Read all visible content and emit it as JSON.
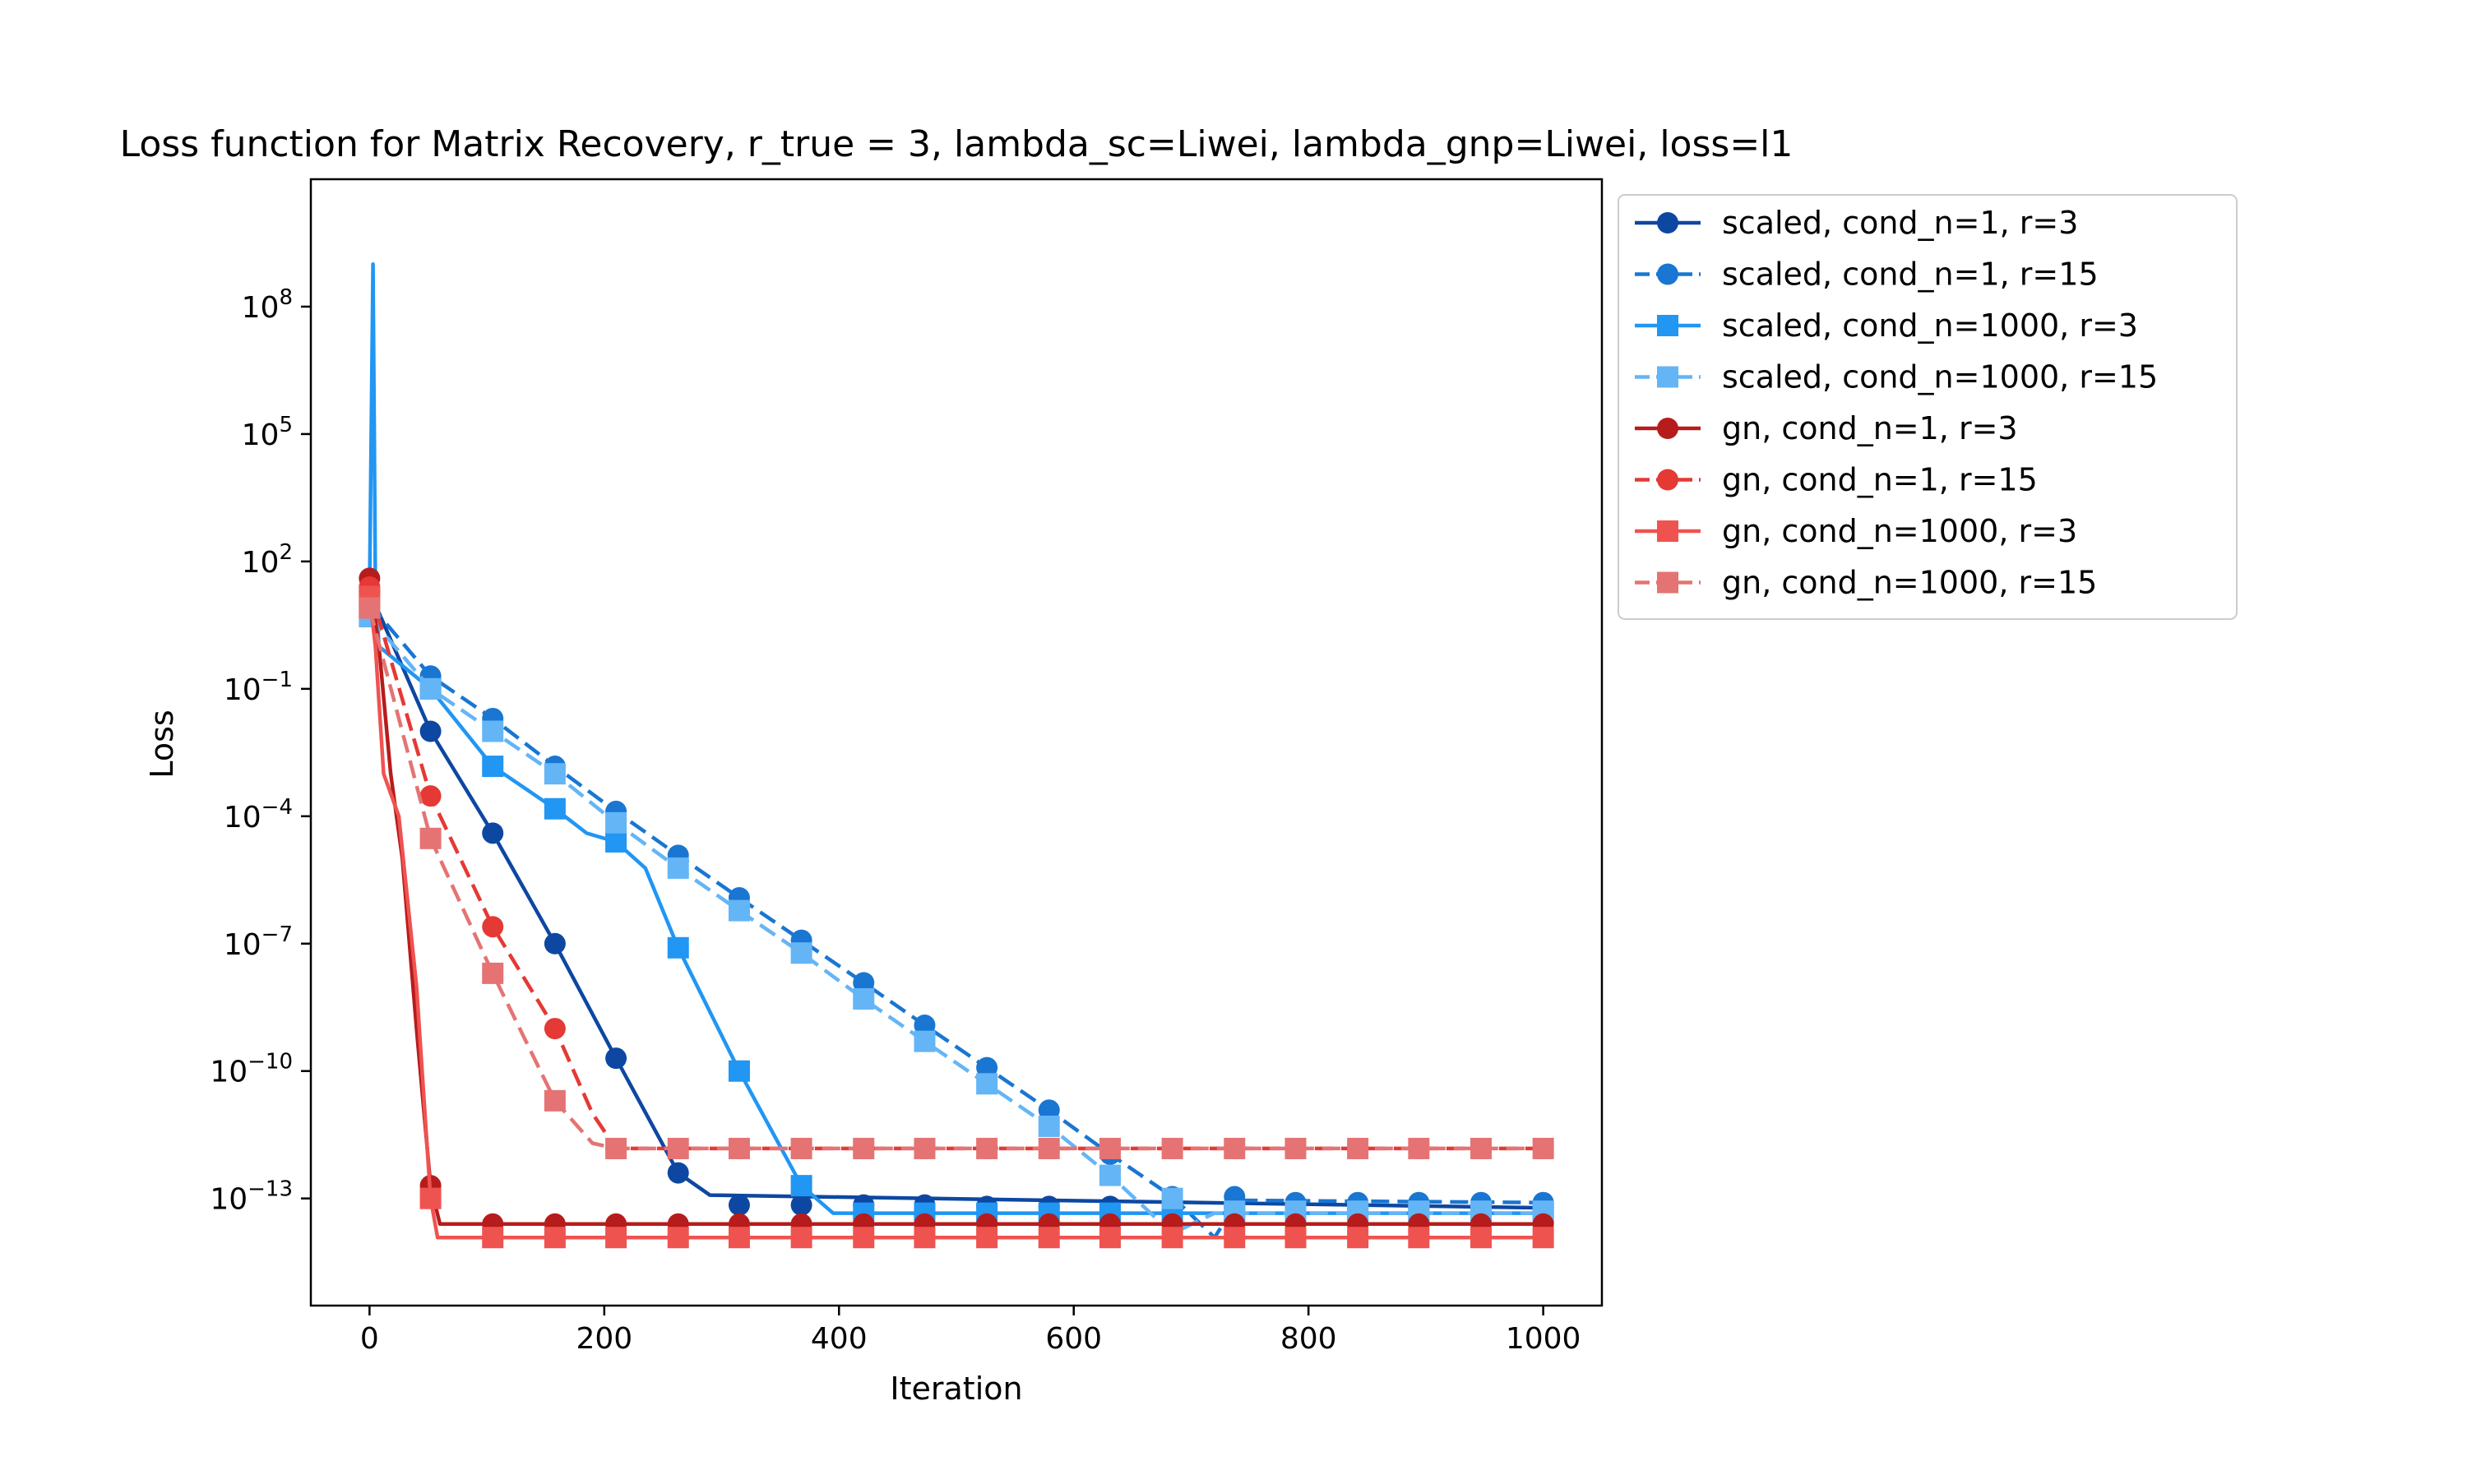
{
  "chart_data": {
    "type": "line",
    "title": "Loss function for Matrix Recovery, r_true = 3, lambda_sc=Liwei, lambda_gnp=Liwei, loss=l1",
    "xlabel": "Iteration",
    "ylabel": "Loss",
    "xlim": [
      -50,
      1050
    ],
    "ylim": [
      3e-16,
      100000000000.0
    ],
    "yscale": "log",
    "x_ticks": [
      0,
      200,
      400,
      600,
      800,
      1000
    ],
    "y_ticks": [
      {
        "value": 100000000.0,
        "mantissa": "10",
        "exp": "8"
      },
      {
        "value": 100000.0,
        "mantissa": "10",
        "exp": "5"
      },
      {
        "value": 100.0,
        "mantissa": "10",
        "exp": "2"
      },
      {
        "value": 0.1,
        "mantissa": "10",
        "exp": "−1"
      },
      {
        "value": 0.0001,
        "mantissa": "10",
        "exp": "−4"
      },
      {
        "value": 1e-07,
        "mantissa": "10",
        "exp": "−7"
      },
      {
        "value": 1e-10,
        "mantissa": "10",
        "exp": "−10"
      },
      {
        "value": 1e-13,
        "mantissa": "10",
        "exp": "−13"
      }
    ],
    "grid": false,
    "legend_position": "top-right",
    "series": [
      {
        "name": "scaled, cond_n=1, r=3",
        "color": "#0d47a1",
        "dash": "solid",
        "marker": "circle",
        "line": [
          [
            0,
            20
          ],
          [
            52,
            0.01
          ],
          [
            105,
            4e-05
          ],
          [
            158,
            1e-07
          ],
          [
            210,
            2e-10
          ],
          [
            263,
            4e-13
          ],
          [
            290,
            1.2e-13
          ],
          [
            1000,
            6e-14
          ]
        ],
        "markers": [
          [
            0,
            20
          ],
          [
            52,
            0.01
          ],
          [
            105,
            4e-05
          ],
          [
            158,
            1e-07
          ],
          [
            210,
            2e-10
          ],
          [
            263,
            4e-13
          ],
          [
            315,
            7e-14
          ],
          [
            368,
            7e-14
          ],
          [
            421,
            7e-14
          ],
          [
            473,
            7e-14
          ],
          [
            526,
            6.5e-14
          ],
          [
            579,
            6.5e-14
          ],
          [
            631,
            6.5e-14
          ],
          [
            684,
            6e-14
          ],
          [
            737,
            6e-14
          ],
          [
            789,
            6e-14
          ],
          [
            842,
            6e-14
          ],
          [
            894,
            6e-14
          ],
          [
            947,
            6e-14
          ],
          [
            1000,
            6e-14
          ]
        ]
      },
      {
        "name": "scaled, cond_n=1, r=15",
        "color": "#1976d2",
        "dash": "dashed",
        "marker": "circle",
        "line": [
          [
            0,
            10
          ],
          [
            52,
            0.2
          ],
          [
            105,
            0.02
          ],
          [
            158,
            0.0015
          ],
          [
            210,
            0.00013
          ],
          [
            263,
            1.2e-05
          ],
          [
            315,
            1.2e-06
          ],
          [
            368,
            1.2e-07
          ],
          [
            421,
            1.2e-08
          ],
          [
            473,
            1.2e-09
          ],
          [
            526,
            1.2e-10
          ],
          [
            579,
            1.2e-11
          ],
          [
            631,
            1.1e-12
          ],
          [
            684,
            1.1e-13
          ],
          [
            720,
            1.2e-14
          ],
          [
            740,
            9e-14
          ],
          [
            1000,
            8e-14
          ]
        ],
        "markers": [
          [
            0,
            10
          ],
          [
            52,
            0.2
          ],
          [
            105,
            0.02
          ],
          [
            158,
            0.0015
          ],
          [
            210,
            0.00013
          ],
          [
            263,
            1.2e-05
          ],
          [
            315,
            1.2e-06
          ],
          [
            368,
            1.2e-07
          ],
          [
            421,
            1.2e-08
          ],
          [
            473,
            1.2e-09
          ],
          [
            526,
            1.2e-10
          ],
          [
            579,
            1.2e-11
          ],
          [
            631,
            1.1e-12
          ],
          [
            684,
            1.1e-13
          ],
          [
            737,
            1.1e-13
          ],
          [
            789,
            8e-14
          ],
          [
            842,
            8e-14
          ],
          [
            894,
            8e-14
          ],
          [
            947,
            8e-14
          ],
          [
            1000,
            8e-14
          ]
        ]
      },
      {
        "name": "scaled, cond_n=1000, r=3",
        "color": "#2196f3",
        "dash": "solid",
        "marker": "square",
        "spike": [
          [
            0,
            20
          ],
          [
            3,
            1000000000.0
          ],
          [
            5,
            30
          ],
          [
            8,
            1
          ]
        ],
        "line": [
          [
            8,
            1
          ],
          [
            52,
            0.1
          ],
          [
            105,
            0.0015
          ],
          [
            158,
            0.00015
          ],
          [
            185,
            4e-05
          ],
          [
            210,
            2.5e-05
          ],
          [
            235,
            6e-06
          ],
          [
            263,
            8e-08
          ],
          [
            315,
            1e-10
          ],
          [
            368,
            2e-13
          ],
          [
            395,
            4.5e-14
          ],
          [
            1000,
            4.5e-14
          ]
        ],
        "markers": [
          [
            52,
            0.1
          ],
          [
            105,
            0.0015
          ],
          [
            158,
            0.00015
          ],
          [
            210,
            2.5e-05
          ],
          [
            263,
            8e-08
          ],
          [
            315,
            1e-10
          ],
          [
            368,
            2e-13
          ],
          [
            421,
            4.5e-14
          ],
          [
            473,
            4.5e-14
          ],
          [
            526,
            4.5e-14
          ],
          [
            579,
            4.5e-14
          ],
          [
            631,
            4.5e-14
          ],
          [
            684,
            4.5e-14
          ],
          [
            737,
            4.5e-14
          ],
          [
            789,
            4.5e-14
          ],
          [
            842,
            4.5e-14
          ],
          [
            894,
            4.5e-14
          ],
          [
            947,
            4.5e-14
          ],
          [
            1000,
            4.5e-14
          ]
        ]
      },
      {
        "name": "scaled, cond_n=1000, r=15",
        "color": "#64b5f6",
        "dash": "dashed",
        "marker": "square",
        "line": [
          [
            0,
            5
          ],
          [
            52,
            0.1
          ],
          [
            105,
            0.01
          ],
          [
            158,
            0.001
          ],
          [
            210,
            7e-05
          ],
          [
            263,
            6e-06
          ],
          [
            315,
            6e-07
          ],
          [
            368,
            6e-08
          ],
          [
            421,
            5e-09
          ],
          [
            473,
            5e-10
          ],
          [
            526,
            5e-11
          ],
          [
            579,
            5e-12
          ],
          [
            631,
            3.5e-13
          ],
          [
            684,
            1.5e-14
          ],
          [
            720,
            4.5e-14
          ],
          [
            1000,
            4.5e-14
          ]
        ],
        "markers": [
          [
            0,
            5
          ],
          [
            52,
            0.1
          ],
          [
            105,
            0.01
          ],
          [
            158,
            0.001
          ],
          [
            210,
            7e-05
          ],
          [
            263,
            6e-06
          ],
          [
            315,
            6e-07
          ],
          [
            368,
            6e-08
          ],
          [
            421,
            5e-09
          ],
          [
            473,
            5e-10
          ],
          [
            526,
            5e-11
          ],
          [
            579,
            5e-12
          ],
          [
            631,
            3.5e-13
          ],
          [
            684,
            1e-13
          ],
          [
            737,
            5e-14
          ],
          [
            789,
            5e-14
          ],
          [
            842,
            5e-14
          ],
          [
            894,
            5e-14
          ],
          [
            947,
            5e-14
          ],
          [
            1000,
            5e-14
          ]
        ]
      },
      {
        "name": "gn, cond_n=1, r=3",
        "color": "#b71c1c",
        "dash": "solid",
        "marker": "circle",
        "line": [
          [
            0,
            40
          ],
          [
            8,
            1
          ],
          [
            18,
            0.001
          ],
          [
            28,
            1e-05
          ],
          [
            40,
            1e-09
          ],
          [
            52,
            2e-13
          ],
          [
            60,
            2.5e-14
          ],
          [
            1000,
            2.5e-14
          ]
        ],
        "markers": [
          [
            0,
            40
          ],
          [
            52,
            2e-13
          ],
          [
            105,
            2.5e-14
          ],
          [
            158,
            2.5e-14
          ],
          [
            210,
            2.5e-14
          ],
          [
            263,
            2.5e-14
          ],
          [
            315,
            2.5e-14
          ],
          [
            368,
            2.5e-14
          ],
          [
            421,
            2.5e-14
          ],
          [
            473,
            2.5e-14
          ],
          [
            526,
            2.5e-14
          ],
          [
            579,
            2.5e-14
          ],
          [
            631,
            2.5e-14
          ],
          [
            684,
            2.5e-14
          ],
          [
            737,
            2.5e-14
          ],
          [
            789,
            2.5e-14
          ],
          [
            842,
            2.5e-14
          ],
          [
            894,
            2.5e-14
          ],
          [
            947,
            2.5e-14
          ],
          [
            1000,
            2.5e-14
          ]
        ]
      },
      {
        "name": "gn, cond_n=1, r=15",
        "color": "#e53935",
        "dash": "dashed",
        "marker": "circle",
        "line": [
          [
            0,
            25
          ],
          [
            52,
            0.0003
          ],
          [
            105,
            2.5e-07
          ],
          [
            158,
            1e-09
          ],
          [
            190,
            1e-11
          ],
          [
            210,
            1.5e-12
          ],
          [
            1000,
            1.5e-12
          ]
        ],
        "markers": [
          [
            0,
            25
          ],
          [
            52,
            0.0003
          ],
          [
            105,
            2.5e-07
          ],
          [
            158,
            1e-09
          ],
          [
            210,
            1.5e-12
          ],
          [
            263,
            1.5e-12
          ],
          [
            315,
            1.5e-12
          ],
          [
            368,
            1.5e-12
          ],
          [
            421,
            1.5e-12
          ],
          [
            473,
            1.5e-12
          ],
          [
            526,
            1.5e-12
          ],
          [
            579,
            1.5e-12
          ],
          [
            631,
            1.5e-12
          ],
          [
            684,
            1.5e-12
          ],
          [
            737,
            1.5e-12
          ],
          [
            789,
            1.5e-12
          ],
          [
            842,
            1.5e-12
          ],
          [
            894,
            1.5e-12
          ],
          [
            947,
            1.5e-12
          ],
          [
            1000,
            1.5e-12
          ]
        ]
      },
      {
        "name": "gn, cond_n=1000, r=3",
        "color": "#ef5350",
        "dash": "solid",
        "marker": "square",
        "line": [
          [
            0,
            15
          ],
          [
            5,
            1
          ],
          [
            12,
            0.001
          ],
          [
            25,
            0.0001
          ],
          [
            40,
            1e-08
          ],
          [
            52,
            1e-13
          ],
          [
            58,
            1.2e-14
          ],
          [
            1000,
            1.2e-14
          ]
        ],
        "markers": [
          [
            0,
            15
          ],
          [
            52,
            1e-13
          ],
          [
            105,
            1.2e-14
          ],
          [
            158,
            1.2e-14
          ],
          [
            210,
            1.2e-14
          ],
          [
            263,
            1.2e-14
          ],
          [
            315,
            1.2e-14
          ],
          [
            368,
            1.2e-14
          ],
          [
            421,
            1.2e-14
          ],
          [
            473,
            1.2e-14
          ],
          [
            526,
            1.2e-14
          ],
          [
            579,
            1.2e-14
          ],
          [
            631,
            1.2e-14
          ],
          [
            684,
            1.2e-14
          ],
          [
            737,
            1.2e-14
          ],
          [
            789,
            1.2e-14
          ],
          [
            842,
            1.2e-14
          ],
          [
            894,
            1.2e-14
          ],
          [
            947,
            1.2e-14
          ],
          [
            1000,
            1.2e-14
          ]
        ]
      },
      {
        "name": "gn, cond_n=1000, r=15",
        "color": "#e57373",
        "dash": "dashed",
        "marker": "square",
        "line": [
          [
            0,
            8
          ],
          [
            52,
            3e-05
          ],
          [
            105,
            2e-08
          ],
          [
            158,
            2e-11
          ],
          [
            190,
            2e-12
          ],
          [
            210,
            1.5e-12
          ],
          [
            1000,
            1.5e-12
          ]
        ],
        "markers": [
          [
            0,
            8
          ],
          [
            52,
            3e-05
          ],
          [
            105,
            2e-08
          ],
          [
            158,
            2e-11
          ],
          [
            210,
            1.5e-12
          ],
          [
            263,
            1.5e-12
          ],
          [
            315,
            1.5e-12
          ],
          [
            368,
            1.5e-12
          ],
          [
            421,
            1.5e-12
          ],
          [
            473,
            1.5e-12
          ],
          [
            526,
            1.5e-12
          ],
          [
            579,
            1.5e-12
          ],
          [
            631,
            1.5e-12
          ],
          [
            684,
            1.5e-12
          ],
          [
            737,
            1.5e-12
          ],
          [
            789,
            1.5e-12
          ],
          [
            842,
            1.5e-12
          ],
          [
            894,
            1.5e-12
          ],
          [
            947,
            1.5e-12
          ],
          [
            1000,
            1.5e-12
          ]
        ]
      }
    ]
  }
}
